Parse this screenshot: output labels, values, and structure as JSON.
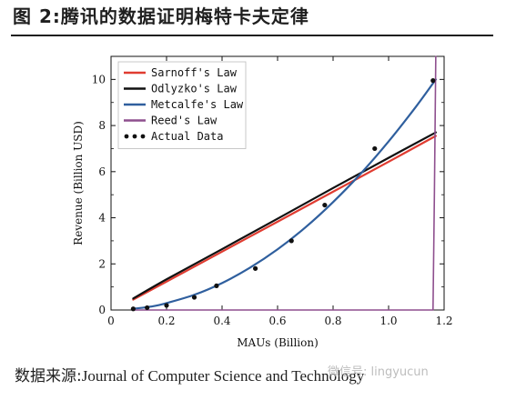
{
  "figure": {
    "title": "图 2:腾讯的数据证明梅特卡夫定律",
    "source_label": "数据来源:",
    "source_text": "Journal of Computer Science and Technology",
    "watermark": "微信号: lingyucun"
  },
  "chart_data": {
    "type": "line",
    "title": "",
    "xlabel": "MAUs (Billion)",
    "ylabel": "Revenue (Billion USD)",
    "xlim": [
      0,
      1.2
    ],
    "ylim": [
      0,
      11
    ],
    "xticks": [
      0,
      0.2,
      0.4,
      0.6,
      0.8,
      1.0,
      1.2
    ],
    "xtick_labels": [
      "0",
      "0.2",
      "0.4",
      "0.6",
      "0.8",
      "1.0",
      "1.2"
    ],
    "yticks": [
      0,
      2,
      4,
      6,
      8,
      10
    ],
    "ytick_labels": [
      "0",
      "2",
      "4",
      "6",
      "8",
      "10"
    ],
    "legend_position": "top-left",
    "grid": false,
    "series": [
      {
        "name": "Sarnoff's Law",
        "color": "#e03c31",
        "x": [
          0.08,
          0.2,
          0.4,
          0.6,
          0.8,
          1.0,
          1.17
        ],
        "values": [
          0.45,
          1.23,
          2.53,
          3.83,
          5.13,
          6.43,
          7.55
        ]
      },
      {
        "name": "Odlyzko's Law",
        "color": "#111111",
        "x": [
          0.08,
          0.2,
          0.4,
          0.6,
          0.8,
          1.0,
          1.17
        ],
        "values": [
          0.5,
          1.33,
          2.64,
          3.96,
          5.29,
          6.6,
          7.7
        ]
      },
      {
        "name": "Metcalfe's Law",
        "color": "#2f5f9e",
        "x": [
          0.08,
          0.15,
          0.2,
          0.3,
          0.4,
          0.5,
          0.6,
          0.7,
          0.8,
          0.9,
          1.0,
          1.1,
          1.17
        ],
        "values": [
          0.05,
          0.16,
          0.3,
          0.66,
          1.17,
          1.83,
          2.63,
          3.58,
          4.68,
          5.92,
          7.31,
          8.84,
          10.0
        ]
      },
      {
        "name": "Reed's Law",
        "color": "#8e4f8e",
        "x": [
          0.08,
          0.5,
          1.0,
          1.16,
          1.165,
          1.17
        ],
        "values": [
          0.0,
          0.0,
          0.0,
          0.0,
          5.0,
          11.0
        ]
      },
      {
        "name": "Actual Data",
        "color": "#111111",
        "marker": "dot",
        "x": [
          0.08,
          0.13,
          0.2,
          0.3,
          0.38,
          0.52,
          0.65,
          0.77,
          0.95,
          1.16
        ],
        "values": [
          0.05,
          0.1,
          0.2,
          0.55,
          1.05,
          1.8,
          3.0,
          4.55,
          7.0,
          9.95
        ]
      }
    ]
  }
}
